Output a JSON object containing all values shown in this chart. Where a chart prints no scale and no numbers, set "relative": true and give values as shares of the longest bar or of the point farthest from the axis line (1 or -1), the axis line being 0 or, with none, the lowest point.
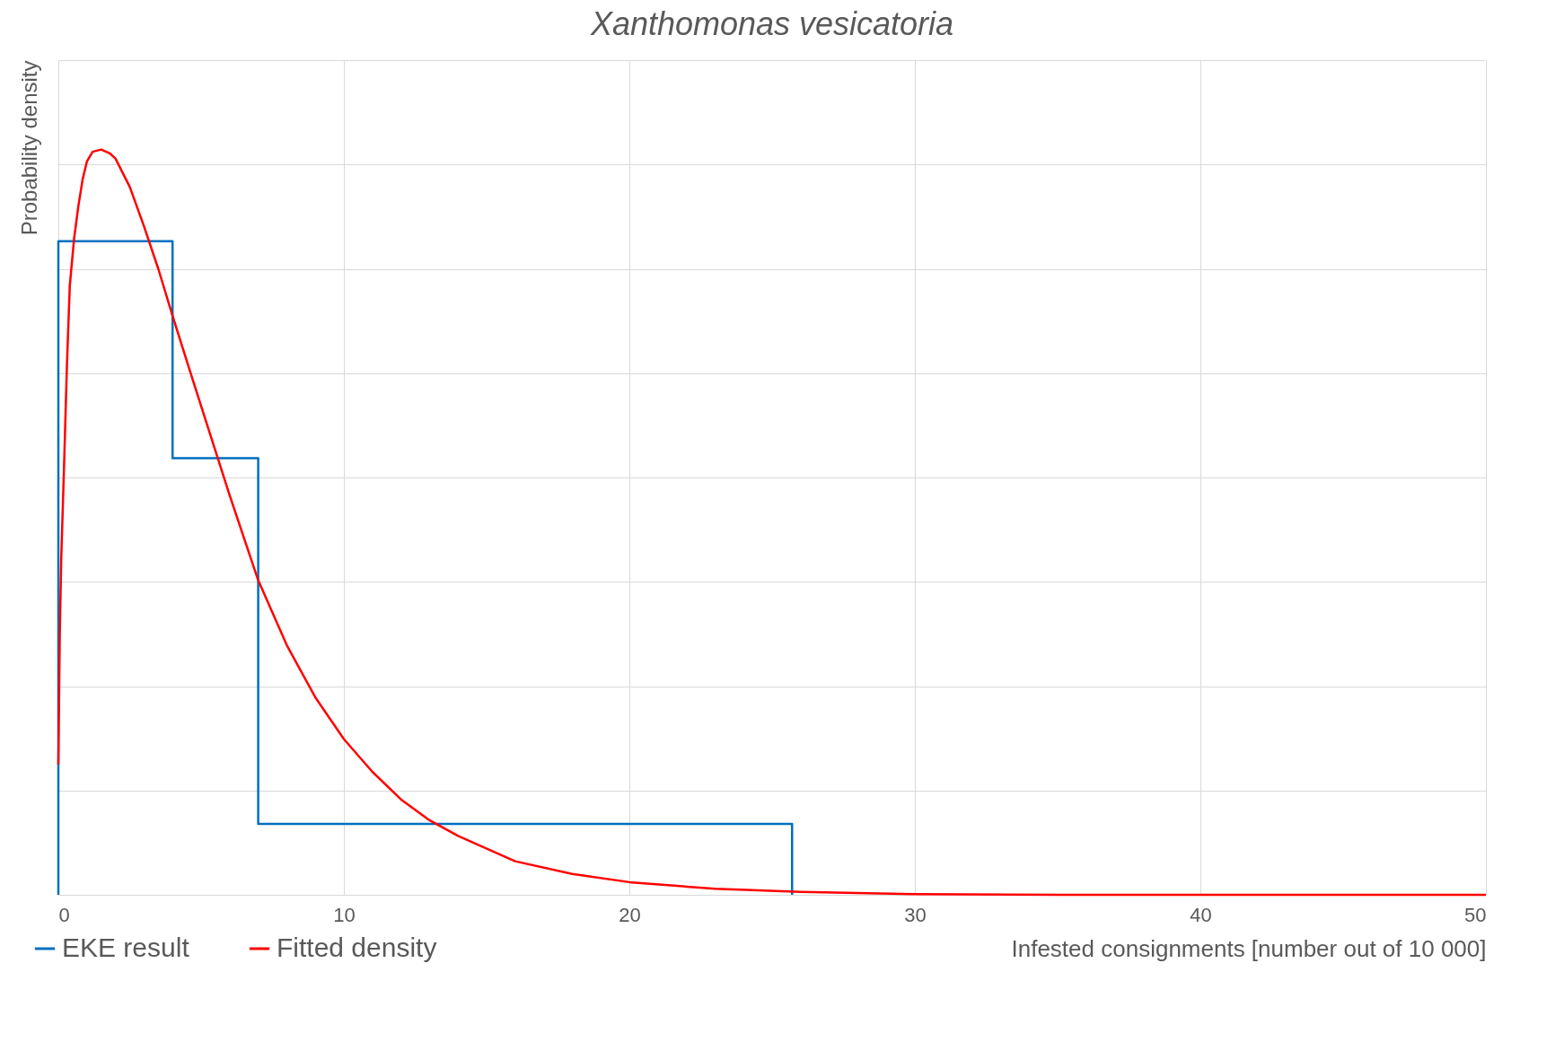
{
  "chart_data": {
    "type": "line",
    "title": "Xanthomonas vesicatoria",
    "xlabel": "Infested consignments [number out of 10 000]",
    "ylabel": "Probability density",
    "relative": true,
    "xlim": [
      0,
      50
    ],
    "xticks": [
      0,
      10,
      20,
      30,
      40,
      50
    ],
    "grid": true,
    "legend": "bottom left",
    "marker": "none",
    "series": [
      {
        "name": "EKE result",
        "type": "step",
        "color": "#0070c0",
        "x": [
          0,
          0,
          4,
          7,
          25.7
        ],
        "values": [
          0,
          0.877,
          0.586,
          0.095,
          0
        ]
      },
      {
        "name": "Fitted density",
        "color": "#ff0000",
        "x": [
          0,
          0.05,
          0.1,
          0.2,
          0.3,
          0.4,
          0.55,
          0.7,
          0.85,
          1,
          1.2,
          1.5,
          1.8,
          2,
          2.5,
          3,
          3.5,
          4,
          4.5,
          5,
          6,
          7,
          8,
          9,
          10,
          11,
          12,
          13,
          14,
          16,
          18,
          20,
          23,
          26,
          30,
          35,
          50
        ],
        "values": [
          0.175,
          0.35,
          0.45,
          0.576,
          0.71,
          0.817,
          0.88,
          0.924,
          0.96,
          0.984,
          0.997,
          1,
          0.995,
          0.988,
          0.95,
          0.897,
          0.84,
          0.777,
          0.716,
          0.656,
          0.536,
          0.422,
          0.335,
          0.265,
          0.209,
          0.165,
          0.128,
          0.1,
          0.079,
          0.045,
          0.028,
          0.017,
          0.008,
          0.004,
          0.001,
          0,
          0
        ]
      }
    ]
  }
}
